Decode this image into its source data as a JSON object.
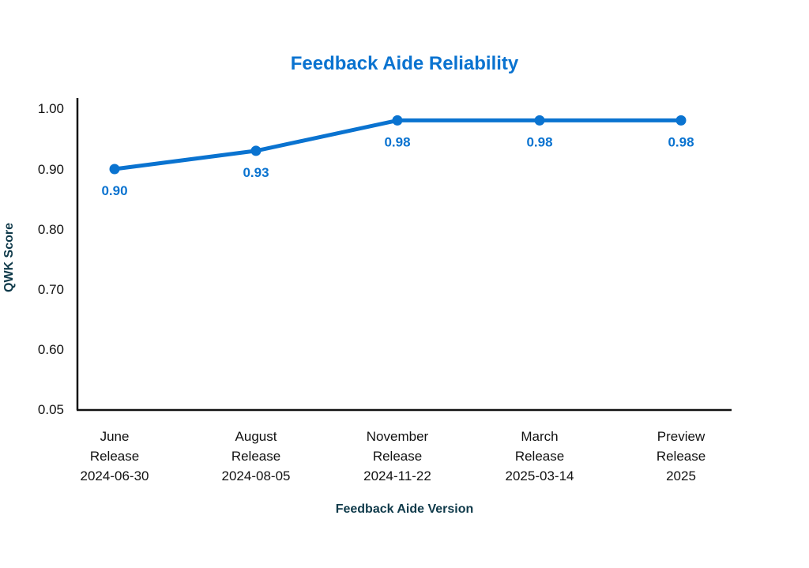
{
  "chart_data": {
    "type": "line",
    "title": "Feedback Aide Reliability",
    "xlabel": "Feedback Aide Version",
    "ylabel": "QWK Score",
    "categories": [
      [
        "June",
        "Release",
        "2024-06-30"
      ],
      [
        "August",
        "Release",
        "2024-08-05"
      ],
      [
        "November",
        "Release",
        "2024-11-22"
      ],
      [
        "March",
        "Release",
        "2025-03-14"
      ],
      [
        "Preview",
        "Release",
        "2025"
      ]
    ],
    "series": [
      {
        "values": [
          0.9,
          0.93,
          0.98,
          0.98,
          0.98
        ]
      }
    ],
    "data_labels": [
      "0.90",
      "0.93",
      "0.98",
      "0.98",
      "0.98"
    ],
    "yticks": [
      "1.00",
      "0.90",
      "0.80",
      "0.70",
      "0.60",
      "0.05"
    ],
    "grid": false,
    "legend": "none"
  },
  "colors": {
    "line": "#0A73D0",
    "title": "#0A73D0",
    "axis_label": "#0F3A4A",
    "axis": "#111111"
  }
}
